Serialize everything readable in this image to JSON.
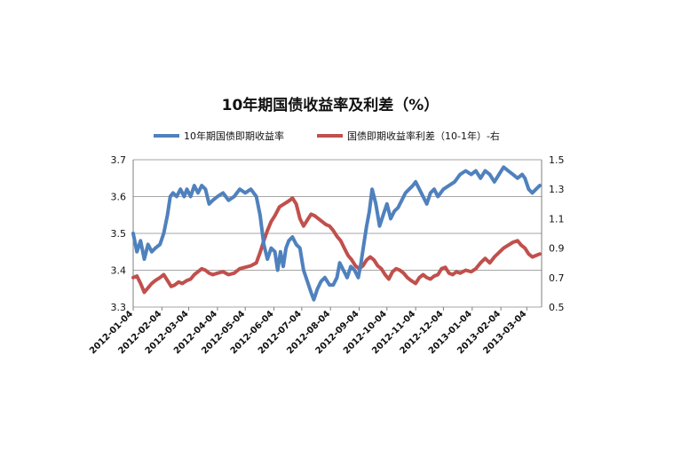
{
  "chart_data": {
    "type": "line",
    "title": "10年期国债收益率及利差（%）",
    "x_tick_labels": [
      "2012-01-04",
      "2012-02-04",
      "2012-03-04",
      "2012-04-04",
      "2012-05-04",
      "2012-06-04",
      "2012-07-04",
      "2012-08-04",
      "2012-09-04",
      "2012-10-04",
      "2012-11-04",
      "2012-12-04",
      "2013-01-04",
      "2013-02-04",
      "2013-03-04"
    ],
    "left_axis": {
      "ylim": [
        3.3,
        3.7
      ],
      "ticks": [
        "3.3",
        "3.4",
        "3.5",
        "3.6",
        "3.7"
      ]
    },
    "right_axis": {
      "ylim": [
        0.5,
        1.5
      ],
      "ticks": [
        "0.5",
        "0.7",
        "0.9",
        "1.1",
        "1.3",
        "1.5"
      ]
    },
    "grid": true,
    "legend_position": "top",
    "series": [
      {
        "name": "10年期国债即期收益率",
        "axis": "left",
        "color": "#4f81bd",
        "points": [
          [
            "2012-01-04",
            3.5
          ],
          [
            "2012-01-08",
            3.45
          ],
          [
            "2012-01-12",
            3.48
          ],
          [
            "2012-01-16",
            3.43
          ],
          [
            "2012-01-20",
            3.47
          ],
          [
            "2012-01-24",
            3.45
          ],
          [
            "2012-01-28",
            3.46
          ],
          [
            "2012-02-02",
            3.47
          ],
          [
            "2012-02-06",
            3.5
          ],
          [
            "2012-02-10",
            3.55
          ],
          [
            "2012-02-13",
            3.6
          ],
          [
            "2012-02-16",
            3.61
          ],
          [
            "2012-02-20",
            3.6
          ],
          [
            "2012-02-24",
            3.62
          ],
          [
            "2012-02-28",
            3.6
          ],
          [
            "2012-03-02",
            3.62
          ],
          [
            "2012-03-06",
            3.6
          ],
          [
            "2012-03-10",
            3.63
          ],
          [
            "2012-03-14",
            3.61
          ],
          [
            "2012-03-18",
            3.63
          ],
          [
            "2012-03-22",
            3.62
          ],
          [
            "2012-03-26",
            3.58
          ],
          [
            "2012-03-30",
            3.59
          ],
          [
            "2012-04-04",
            3.6
          ],
          [
            "2012-04-10",
            3.61
          ],
          [
            "2012-04-16",
            3.59
          ],
          [
            "2012-04-22",
            3.6
          ],
          [
            "2012-04-28",
            3.62
          ],
          [
            "2012-05-04",
            3.61
          ],
          [
            "2012-05-10",
            3.62
          ],
          [
            "2012-05-16",
            3.6
          ],
          [
            "2012-05-20",
            3.55
          ],
          [
            "2012-05-24",
            3.47
          ],
          [
            "2012-05-28",
            3.43
          ],
          [
            "2012-06-01",
            3.46
          ],
          [
            "2012-06-05",
            3.45
          ],
          [
            "2012-06-08",
            3.4
          ],
          [
            "2012-06-11",
            3.45
          ],
          [
            "2012-06-14",
            3.41
          ],
          [
            "2012-06-17",
            3.46
          ],
          [
            "2012-06-20",
            3.48
          ],
          [
            "2012-06-24",
            3.49
          ],
          [
            "2012-06-28",
            3.47
          ],
          [
            "2012-07-02",
            3.46
          ],
          [
            "2012-07-06",
            3.4
          ],
          [
            "2012-07-10",
            3.37
          ],
          [
            "2012-07-14",
            3.34
          ],
          [
            "2012-07-17",
            3.32
          ],
          [
            "2012-07-21",
            3.35
          ],
          [
            "2012-07-25",
            3.37
          ],
          [
            "2012-07-29",
            3.38
          ],
          [
            "2012-08-03",
            3.36
          ],
          [
            "2012-08-07",
            3.36
          ],
          [
            "2012-08-11",
            3.38
          ],
          [
            "2012-08-14",
            3.42
          ],
          [
            "2012-08-18",
            3.4
          ],
          [
            "2012-08-22",
            3.38
          ],
          [
            "2012-08-26",
            3.41
          ],
          [
            "2012-08-30",
            3.4
          ],
          [
            "2012-09-03",
            3.38
          ],
          [
            "2012-09-06",
            3.42
          ],
          [
            "2012-09-09",
            3.47
          ],
          [
            "2012-09-12",
            3.52
          ],
          [
            "2012-09-15",
            3.56
          ],
          [
            "2012-09-18",
            3.62
          ],
          [
            "2012-09-22",
            3.58
          ],
          [
            "2012-09-26",
            3.52
          ],
          [
            "2012-09-30",
            3.55
          ],
          [
            "2012-10-04",
            3.58
          ],
          [
            "2012-10-08",
            3.54
          ],
          [
            "2012-10-12",
            3.56
          ],
          [
            "2012-10-16",
            3.57
          ],
          [
            "2012-10-20",
            3.59
          ],
          [
            "2012-10-24",
            3.61
          ],
          [
            "2012-10-28",
            3.62
          ],
          [
            "2012-11-01",
            3.63
          ],
          [
            "2012-11-04",
            3.64
          ],
          [
            "2012-11-08",
            3.62
          ],
          [
            "2012-11-12",
            3.6
          ],
          [
            "2012-11-16",
            3.58
          ],
          [
            "2012-11-20",
            3.61
          ],
          [
            "2012-11-24",
            3.62
          ],
          [
            "2012-11-28",
            3.6
          ],
          [
            "2012-12-04",
            3.62
          ],
          [
            "2012-12-10",
            3.63
          ],
          [
            "2012-12-16",
            3.64
          ],
          [
            "2012-12-22",
            3.66
          ],
          [
            "2012-12-28",
            3.67
          ],
          [
            "2013-01-03",
            3.66
          ],
          [
            "2013-01-08",
            3.67
          ],
          [
            "2013-01-13",
            3.65
          ],
          [
            "2013-01-18",
            3.67
          ],
          [
            "2013-01-23",
            3.66
          ],
          [
            "2013-01-28",
            3.64
          ],
          [
            "2013-02-02",
            3.66
          ],
          [
            "2013-02-07",
            3.68
          ],
          [
            "2013-02-12",
            3.67
          ],
          [
            "2013-02-17",
            3.66
          ],
          [
            "2013-02-22",
            3.65
          ],
          [
            "2013-02-27",
            3.66
          ],
          [
            "2013-03-02",
            3.65
          ],
          [
            "2013-03-06",
            3.62
          ],
          [
            "2013-03-10",
            3.61
          ],
          [
            "2013-03-14",
            3.62
          ],
          [
            "2013-03-18",
            3.63
          ]
        ]
      },
      {
        "name": "国债即期收益率利差（10-1年）-右",
        "axis": "right",
        "color": "#c0504d",
        "points": [
          [
            "2012-01-04",
            0.7
          ],
          [
            "2012-01-08",
            0.71
          ],
          [
            "2012-01-12",
            0.66
          ],
          [
            "2012-01-16",
            0.6
          ],
          [
            "2012-01-20",
            0.63
          ],
          [
            "2012-01-24",
            0.66
          ],
          [
            "2012-01-28",
            0.68
          ],
          [
            "2012-02-02",
            0.7
          ],
          [
            "2012-02-06",
            0.72
          ],
          [
            "2012-02-10",
            0.68
          ],
          [
            "2012-02-14",
            0.64
          ],
          [
            "2012-02-18",
            0.65
          ],
          [
            "2012-02-22",
            0.67
          ],
          [
            "2012-02-26",
            0.66
          ],
          [
            "2012-03-02",
            0.68
          ],
          [
            "2012-03-06",
            0.69
          ],
          [
            "2012-03-10",
            0.72
          ],
          [
            "2012-03-14",
            0.74
          ],
          [
            "2012-03-18",
            0.76
          ],
          [
            "2012-03-22",
            0.75
          ],
          [
            "2012-03-26",
            0.73
          ],
          [
            "2012-03-30",
            0.72
          ],
          [
            "2012-04-04",
            0.73
          ],
          [
            "2012-04-10",
            0.74
          ],
          [
            "2012-04-16",
            0.72
          ],
          [
            "2012-04-22",
            0.73
          ],
          [
            "2012-04-28",
            0.76
          ],
          [
            "2012-05-04",
            0.77
          ],
          [
            "2012-05-10",
            0.78
          ],
          [
            "2012-05-16",
            0.8
          ],
          [
            "2012-05-20",
            0.87
          ],
          [
            "2012-05-24",
            0.95
          ],
          [
            "2012-05-28",
            1.02
          ],
          [
            "2012-06-01",
            1.08
          ],
          [
            "2012-06-05",
            1.12
          ],
          [
            "2012-06-10",
            1.18
          ],
          [
            "2012-06-15",
            1.2
          ],
          [
            "2012-06-20",
            1.22
          ],
          [
            "2012-06-24",
            1.24
          ],
          [
            "2012-06-28",
            1.2
          ],
          [
            "2012-07-02",
            1.1
          ],
          [
            "2012-07-06",
            1.05
          ],
          [
            "2012-07-10",
            1.09
          ],
          [
            "2012-07-14",
            1.13
          ],
          [
            "2012-07-18",
            1.12
          ],
          [
            "2012-07-22",
            1.1
          ],
          [
            "2012-07-26",
            1.08
          ],
          [
            "2012-07-30",
            1.06
          ],
          [
            "2012-08-03",
            1.05
          ],
          [
            "2012-08-07",
            1.02
          ],
          [
            "2012-08-11",
            0.98
          ],
          [
            "2012-08-15",
            0.95
          ],
          [
            "2012-08-19",
            0.9
          ],
          [
            "2012-08-23",
            0.85
          ],
          [
            "2012-08-27",
            0.82
          ],
          [
            "2012-08-31",
            0.78
          ],
          [
            "2012-09-04",
            0.76
          ],
          [
            "2012-09-08",
            0.78
          ],
          [
            "2012-09-12",
            0.82
          ],
          [
            "2012-09-16",
            0.84
          ],
          [
            "2012-09-20",
            0.82
          ],
          [
            "2012-09-24",
            0.78
          ],
          [
            "2012-09-28",
            0.76
          ],
          [
            "2012-10-02",
            0.72
          ],
          [
            "2012-10-06",
            0.69
          ],
          [
            "2012-10-10",
            0.74
          ],
          [
            "2012-10-14",
            0.76
          ],
          [
            "2012-10-18",
            0.75
          ],
          [
            "2012-10-22",
            0.73
          ],
          [
            "2012-10-26",
            0.7
          ],
          [
            "2012-10-30",
            0.68
          ],
          [
            "2012-11-04",
            0.66
          ],
          [
            "2012-11-08",
            0.7
          ],
          [
            "2012-11-12",
            0.72
          ],
          [
            "2012-11-16",
            0.7
          ],
          [
            "2012-11-20",
            0.69
          ],
          [
            "2012-11-24",
            0.71
          ],
          [
            "2012-11-28",
            0.72
          ],
          [
            "2012-12-02",
            0.76
          ],
          [
            "2012-12-06",
            0.77
          ],
          [
            "2012-12-10",
            0.73
          ],
          [
            "2012-12-14",
            0.72
          ],
          [
            "2012-12-18",
            0.74
          ],
          [
            "2012-12-22",
            0.73
          ],
          [
            "2012-12-28",
            0.75
          ],
          [
            "2013-01-03",
            0.74
          ],
          [
            "2013-01-08",
            0.76
          ],
          [
            "2013-01-13",
            0.8
          ],
          [
            "2013-01-18",
            0.83
          ],
          [
            "2013-01-23",
            0.8
          ],
          [
            "2013-01-28",
            0.84
          ],
          [
            "2013-02-02",
            0.87
          ],
          [
            "2013-02-07",
            0.9
          ],
          [
            "2013-02-12",
            0.92
          ],
          [
            "2013-02-17",
            0.94
          ],
          [
            "2013-02-22",
            0.95
          ],
          [
            "2013-02-26",
            0.92
          ],
          [
            "2013-03-02",
            0.9
          ],
          [
            "2013-03-06",
            0.86
          ],
          [
            "2013-03-10",
            0.84
          ],
          [
            "2013-03-14",
            0.85
          ],
          [
            "2013-03-18",
            0.86
          ]
        ]
      }
    ]
  }
}
